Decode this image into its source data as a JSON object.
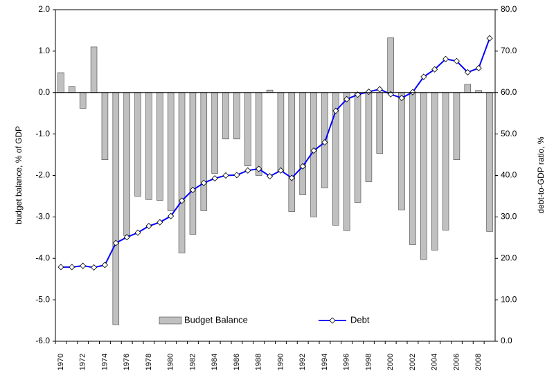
{
  "chart_data": {
    "type": "bar_line",
    "categories": [
      "1970",
      null,
      "1972",
      null,
      "1974",
      null,
      "1976",
      null,
      "1978",
      null,
      "1980",
      null,
      "1982",
      null,
      "1984",
      null,
      "1986",
      null,
      "1988",
      null,
      "1990",
      null,
      "1992",
      null,
      "1994",
      null,
      "1996",
      null,
      "1998",
      null,
      "2000",
      null,
      "2002",
      null,
      "2004",
      null,
      "2006",
      null,
      "2008",
      null
    ],
    "y_label": "budget balance, % of GDP",
    "y2_label": "debt-to-GDP ratio, %",
    "ylim": [
      -6,
      2
    ],
    "yticks": [
      {
        "value": -6,
        "label": "-6.0"
      },
      {
        "value": -5,
        "label": "-5.0"
      },
      {
        "value": -4,
        "label": "-4.0"
      },
      {
        "value": -3,
        "label": "-3.0"
      },
      {
        "value": -2,
        "label": "-2.0"
      },
      {
        "value": -1,
        "label": "-1.0"
      },
      {
        "value": 0,
        "label": "0.0"
      },
      {
        "value": 1,
        "label": "1.0"
      },
      {
        "value": 2,
        "label": "2.0"
      }
    ],
    "y2lim": [
      0,
      80
    ],
    "y2ticks": [
      {
        "value": 0,
        "label": "0.0"
      },
      {
        "value": 10,
        "label": "10.0"
      },
      {
        "value": 20,
        "label": "20.0"
      },
      {
        "value": 30,
        "label": "30.0"
      },
      {
        "value": 40,
        "label": "40.0"
      },
      {
        "value": 50,
        "label": "50.0"
      },
      {
        "value": 60,
        "label": "60.0"
      },
      {
        "value": 70,
        "label": "70.0"
      },
      {
        "value": 80,
        "label": "80.0"
      }
    ],
    "series": [
      {
        "name": "Budget Balance",
        "type": "bar",
        "color": "#c0c0c0",
        "values": [
          0.48,
          0.15,
          -0.38,
          1.1,
          -1.62,
          -5.6,
          -3.45,
          -2.5,
          -2.58,
          -2.6,
          -2.85,
          -3.87,
          -3.42,
          -2.85,
          -1.95,
          -1.12,
          -1.12,
          -1.77,
          -2.0,
          0.06,
          -1.9,
          -2.87,
          -2.47,
          -3.0,
          -2.3,
          -3.2,
          -3.33,
          -2.65,
          -2.15,
          -1.47,
          1.32,
          -2.83,
          -3.67,
          -4.03,
          -3.8,
          -3.32,
          -1.62,
          0.2,
          0.05,
          -3.35
        ]
      },
      {
        "name": "Debt",
        "type": "line",
        "axis": "y2",
        "color": "#0000ff",
        "values": [
          17.9,
          17.9,
          18.2,
          17.8,
          18.4,
          23.7,
          25.1,
          26.2,
          27.8,
          28.7,
          30.2,
          33.9,
          36.5,
          38.2,
          39.3,
          40.0,
          40.1,
          41.2,
          41.6,
          39.8,
          41.2,
          39.4,
          42.2,
          46.0,
          48.0,
          55.6,
          58.4,
          59.5,
          60.2,
          60.8,
          59.6,
          58.7,
          60.1,
          63.8,
          65.6,
          68.1,
          67.6,
          64.9,
          65.9,
          73.1
        ]
      }
    ]
  }
}
